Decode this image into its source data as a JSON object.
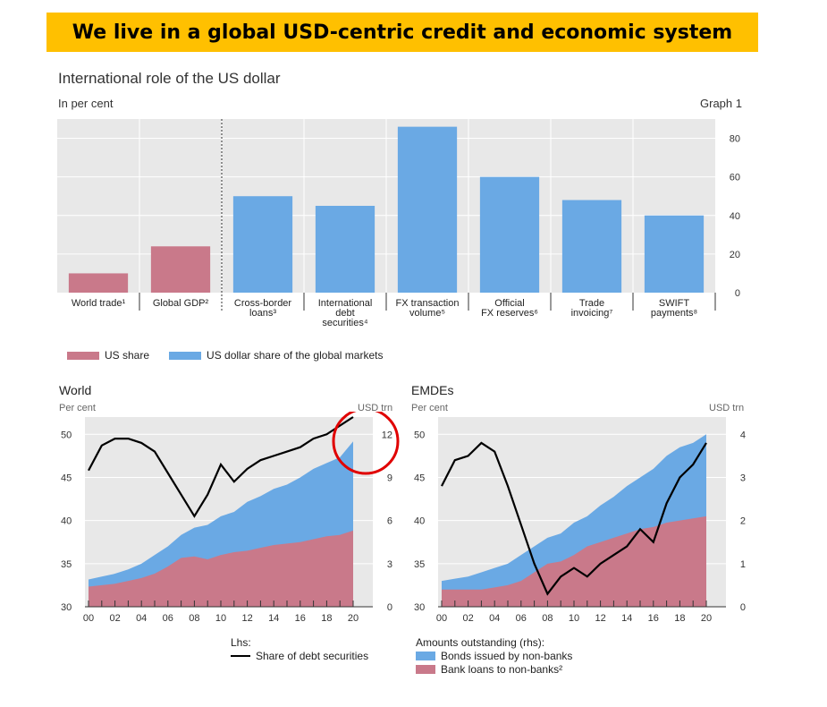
{
  "banner": "We live in a global USD-centric credit and economic system",
  "header": {
    "title": "International role of the US dollar",
    "unit": "In per cent",
    "graph_label": "Graph 1"
  },
  "colors": {
    "us_share": "#c9798a",
    "usd_share": "#6aa9e4",
    "bank_loans": "#c9798a",
    "bonds": "#6aa9e4",
    "line": "#000000",
    "panel_bg": "#e8e8e8",
    "banner": "#ffc000",
    "circle": "#e00000"
  },
  "legend_top": {
    "us_share": "US share",
    "usd_share": "US dollar share of the global markets"
  },
  "chart_data": [
    {
      "type": "bar",
      "categories": [
        "World trade¹",
        "Global GDP²",
        "Cross-border loans³",
        "International debt securities⁴",
        "FX transaction volume⁵",
        "Official FX reserves⁶",
        "Trade invoicing⁷",
        "SWIFT payments⁸"
      ],
      "category_lines": [
        [
          "World trade¹"
        ],
        [
          "Global GDP²"
        ],
        [
          "Cross-border",
          "loans³"
        ],
        [
          "International",
          "debt",
          "securities⁴"
        ],
        [
          "FX transaction",
          "volume⁵"
        ],
        [
          "Official",
          "FX reserves⁶"
        ],
        [
          "Trade",
          "invoicing⁷"
        ],
        [
          "SWIFT",
          "payments⁸"
        ]
      ],
      "values": [
        10,
        24,
        50,
        45,
        86,
        60,
        48,
        40
      ],
      "series_type": [
        "us_share",
        "us_share",
        "usd_share",
        "usd_share",
        "usd_share",
        "usd_share",
        "usd_share",
        "usd_share"
      ],
      "ylim": [
        0,
        90
      ],
      "yticks": [
        0,
        20,
        40,
        60,
        80
      ],
      "grid": true,
      "legend": "bottom-left"
    },
    {
      "type": "area",
      "title": "World",
      "ylabel_left": "Per cent",
      "ylabel_right": "USD trn",
      "x": [
        2000,
        2001,
        2002,
        2003,
        2004,
        2005,
        2006,
        2007,
        2008,
        2009,
        2010,
        2011,
        2012,
        2013,
        2014,
        2015,
        2016,
        2017,
        2018,
        2019,
        2020
      ],
      "xticks": [
        "00",
        "02",
        "04",
        "06",
        "08",
        "10",
        "12",
        "14",
        "16",
        "18",
        "20"
      ],
      "ylim_left": [
        30,
        52
      ],
      "yticks_left": [
        30,
        35,
        40,
        45,
        50
      ],
      "ylim_right": [
        0,
        13.2
      ],
      "yticks_right": [
        0,
        3,
        6,
        9,
        12
      ],
      "series": [
        {
          "name": "Bank loans to non-banks²",
          "kind": "area",
          "axis": "right",
          "values": [
            1.4,
            1.5,
            1.6,
            1.8,
            2.0,
            2.3,
            2.8,
            3.4,
            3.5,
            3.3,
            3.6,
            3.8,
            3.9,
            4.1,
            4.3,
            4.4,
            4.5,
            4.7,
            4.9,
            5.0,
            5.3
          ]
        },
        {
          "name": "Bonds issued by non-banks",
          "kind": "area",
          "axis": "right",
          "values": [
            1.9,
            2.1,
            2.3,
            2.6,
            3.0,
            3.6,
            4.2,
            5.0,
            5.5,
            5.7,
            6.3,
            6.6,
            7.3,
            7.7,
            8.2,
            8.5,
            9.0,
            9.6,
            10.0,
            10.4,
            11.5
          ]
        },
        {
          "name": "Share of debt securities",
          "kind": "line",
          "axis": "left",
          "values": [
            45.8,
            48.7,
            49.5,
            49.5,
            49.0,
            48.0,
            45.5,
            43.0,
            40.5,
            43.0,
            46.5,
            44.5,
            46.0,
            47.0,
            47.5,
            48.0,
            48.5,
            49.5,
            50.0,
            51.0,
            52.0
          ]
        }
      ],
      "annotation": "circle-highlight"
    },
    {
      "type": "area",
      "title": "EMDEs",
      "ylabel_left": "Per cent",
      "ylabel_right": "USD trn",
      "x": [
        2000,
        2001,
        2002,
        2003,
        2004,
        2005,
        2006,
        2007,
        2008,
        2009,
        2010,
        2011,
        2012,
        2013,
        2014,
        2015,
        2016,
        2017,
        2018,
        2019,
        2020
      ],
      "xticks": [
        "00",
        "02",
        "04",
        "06",
        "08",
        "10",
        "12",
        "14",
        "16",
        "18",
        "20"
      ],
      "ylim_left": [
        30,
        52
      ],
      "yticks_left": [
        30,
        35,
        40,
        45,
        50
      ],
      "ylim_right": [
        0,
        4.4
      ],
      "yticks_right": [
        0,
        1,
        2,
        3,
        4
      ],
      "series": [
        {
          "name": "Bank loans to non-banks²",
          "kind": "area",
          "axis": "right",
          "values": [
            0.4,
            0.4,
            0.4,
            0.4,
            0.45,
            0.5,
            0.6,
            0.8,
            1.0,
            1.05,
            1.2,
            1.4,
            1.5,
            1.6,
            1.7,
            1.8,
            1.85,
            1.95,
            2.0,
            2.05,
            2.1
          ]
        },
        {
          "name": "Bonds issued by non-banks",
          "kind": "area",
          "axis": "right",
          "values": [
            0.6,
            0.65,
            0.7,
            0.8,
            0.9,
            1.0,
            1.2,
            1.4,
            1.6,
            1.7,
            1.95,
            2.1,
            2.35,
            2.55,
            2.8,
            3.0,
            3.2,
            3.5,
            3.7,
            3.8,
            4.0
          ]
        },
        {
          "name": "Share of debt securities",
          "kind": "line",
          "axis": "left",
          "values": [
            44.0,
            47.0,
            47.5,
            49.0,
            48.0,
            44.0,
            39.5,
            35.0,
            31.5,
            33.5,
            34.5,
            33.5,
            35.0,
            36.0,
            37.0,
            39.0,
            37.5,
            42.0,
            45.0,
            46.5,
            49.0
          ]
        }
      ]
    }
  ],
  "bottom_legend": {
    "lhs_label": "Lhs:",
    "line_label": "Share of debt securities",
    "rhs_label": "Amounts outstanding (rhs):",
    "bonds_label": "Bonds issued by non-banks",
    "loans_label": "Bank loans to non-banks²"
  }
}
